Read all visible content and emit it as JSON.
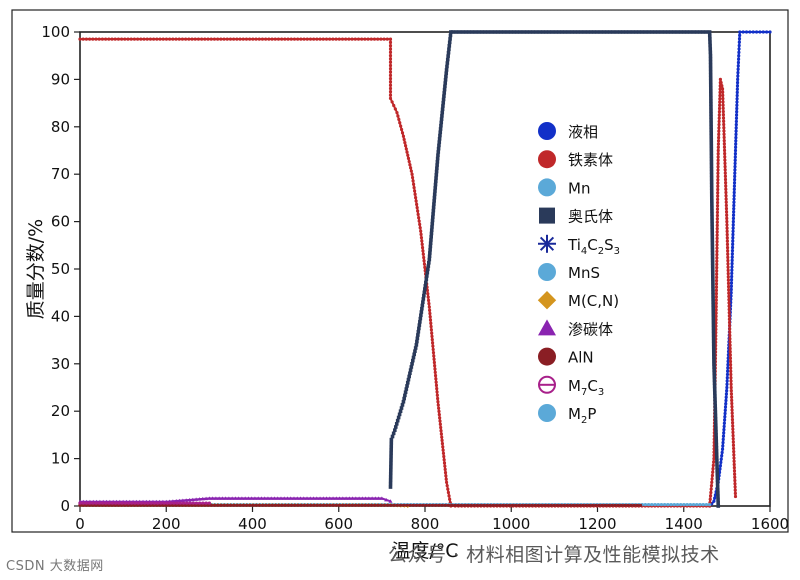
{
  "chart_data": {
    "type": "line",
    "xlabel": "温度/°C",
    "ylabel": "质量分数/%",
    "xlim": [
      0,
      1600
    ],
    "ylim": [
      0,
      100
    ],
    "xticks": [
      0,
      200,
      400,
      600,
      800,
      1000,
      1200,
      1400,
      1600
    ],
    "yticks": [
      0,
      10,
      20,
      30,
      40,
      50,
      60,
      70,
      80,
      90,
      100
    ],
    "grid": false,
    "legend_position": "center-right",
    "series": [
      {
        "name": "液相",
        "color": "#1230c8",
        "marker": "circle",
        "x": [
          1460,
          1470,
          1480,
          1490,
          1500,
          1510,
          1520,
          1525,
          1530,
          1600
        ],
        "y": [
          0,
          1,
          5,
          12,
          25,
          45,
          75,
          90,
          100,
          100
        ]
      },
      {
        "name": "铁素体",
        "color": "#c0282a",
        "marker": "circle",
        "x": [
          0,
          720,
          720,
          735,
          750,
          770,
          790,
          810,
          830,
          850,
          860,
          870,
          1460,
          1470,
          1475,
          1480,
          1485,
          1490,
          1500,
          1510,
          1520
        ],
        "y": [
          98.5,
          98.5,
          86,
          83,
          78,
          70,
          58,
          42,
          22,
          5,
          0,
          0,
          0,
          10,
          40,
          75,
          90,
          88,
          60,
          25,
          2
        ]
      },
      {
        "name": "Mn",
        "color": "#5ba9d8",
        "marker": "circle",
        "x": [],
        "y": []
      },
      {
        "name": "奥氏体",
        "color": "#2a3a5a",
        "marker": "square",
        "x": [
          720,
          722,
          730,
          750,
          780,
          810,
          830,
          850,
          860,
          865,
          1460,
          1462,
          1465,
          1470,
          1480
        ],
        "y": [
          4,
          14,
          16,
          22,
          34,
          52,
          74,
          92,
          100,
          100,
          100,
          95,
          65,
          30,
          0
        ]
      },
      {
        "name": "Ti4C2S3",
        "color": "#1a2a9a",
        "marker": "asterisk",
        "x": [],
        "y": []
      },
      {
        "name": "MnS",
        "color": "#5ba9d8",
        "marker": "circle",
        "x": [
          0,
          1460
        ],
        "y": [
          0.3,
          0.3
        ]
      },
      {
        "name": "M(C,N)",
        "color": "#d4951e",
        "marker": "diamond",
        "x": [
          0,
          720,
          760
        ],
        "y": [
          0.2,
          0.2,
          0
        ]
      },
      {
        "name": "渗碳体",
        "color": "#8a24b0",
        "marker": "triangle",
        "x": [
          0,
          200,
          300,
          700,
          720
        ],
        "y": [
          0.9,
          0.9,
          1.6,
          1.6,
          1.0
        ]
      },
      {
        "name": "AlN",
        "color": "#8a1e24",
        "marker": "circle",
        "x": [
          0,
          1300
        ],
        "y": [
          0.15,
          0.15
        ]
      },
      {
        "name": "M7C3",
        "color": "#a8208a",
        "marker": "circle-line",
        "x": [
          0,
          300
        ],
        "y": [
          0.6,
          0.6
        ]
      },
      {
        "name": "M2P",
        "color": "#5ba9d8",
        "marker": "circle",
        "x": [],
        "y": []
      }
    ],
    "legend": [
      {
        "label": "液相",
        "sub": []
      },
      {
        "label": "铁素体",
        "sub": []
      },
      {
        "label": "Mn",
        "sub": []
      },
      {
        "label": "奥氏体",
        "sub": []
      },
      {
        "label": "Ti4C2S3",
        "parts": [
          [
            "Ti",
            ""
          ],
          [
            "4",
            "sub"
          ],
          [
            "C",
            ""
          ],
          [
            "2",
            "sub"
          ],
          [
            "S",
            ""
          ],
          [
            "3",
            "sub"
          ]
        ]
      },
      {
        "label": "MnS",
        "sub": []
      },
      {
        "label": "M(C,N)",
        "sub": []
      },
      {
        "label": "渗碳体",
        "sub": []
      },
      {
        "label": "AlN",
        "sub": []
      },
      {
        "label": "M7C3",
        "parts": [
          [
            "M",
            ""
          ],
          [
            "7",
            "sub"
          ],
          [
            "C",
            ""
          ],
          [
            "3",
            "sub"
          ]
        ]
      },
      {
        "label": "M2P",
        "parts": [
          [
            "M",
            ""
          ],
          [
            "2",
            "sub"
          ],
          [
            "P",
            ""
          ]
        ]
      }
    ]
  },
  "watermark_right": "公众号 · 材料相图计算及性能模拟技术",
  "watermark_left": "CSDN 大数据网"
}
